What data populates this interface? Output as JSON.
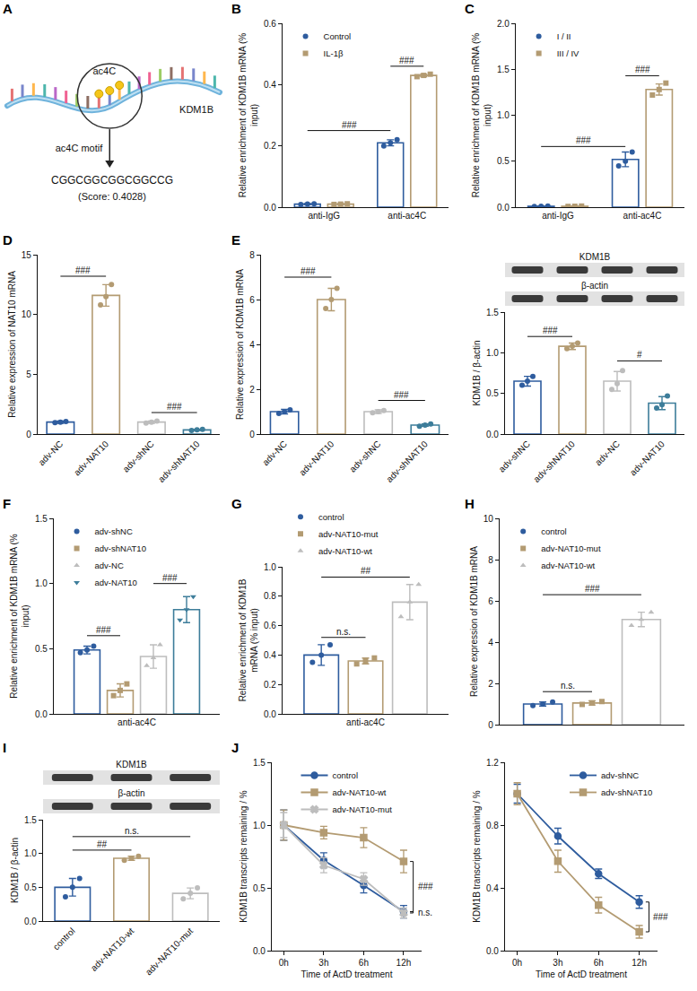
{
  "diagram": {
    "panel": "A",
    "modification": "ac4C",
    "gene": "KDM1B",
    "motif_label": "ac4C motif",
    "motif": "CGGCGGCGGCGGCCG",
    "score": "(Score: 0.4028)"
  },
  "chart_data": [
    {
      "panel": "B",
      "type": "bar",
      "categories": [
        "anti-IgG",
        "anti-ac4C"
      ],
      "y_label": "Relative enrichment of KDM1B mRNA (% input)",
      "ylim": [
        0,
        0.6
      ],
      "yticks": [
        {
          "value": 0,
          "label": "0.0"
        },
        0.2,
        0.4,
        0.6
      ],
      "legend": "upper left",
      "series": [
        {
          "name": "Control",
          "color": "#2e5c9e",
          "marker": "circle",
          "values": [
            0.01,
            0.21
          ],
          "errors": [
            0.002,
            0.01
          ],
          "points": [
            [
              0.009,
              0.01,
              0.011
            ],
            [
              0.2,
              0.21,
              0.22
            ]
          ]
        },
        {
          "name": "IL-1β",
          "color": "#b39b72",
          "marker": "square",
          "values": [
            0.01,
            0.43
          ],
          "errors": [
            0.002,
            0.004
          ],
          "points": [
            [
              0.009,
              0.01,
              0.011
            ],
            [
              0.426,
              0.43,
              0.434
            ]
          ]
        }
      ],
      "annotations": [
        {
          "text": "###",
          "from": [
            0,
            0
          ],
          "to": [
            1,
            0
          ],
          "y": 0.25
        },
        {
          "text": "###",
          "from": [
            1,
            0
          ],
          "to": [
            1,
            1
          ],
          "y": 0.46
        }
      ]
    },
    {
      "panel": "C",
      "type": "bar",
      "categories": [
        "anti-IgG",
        "anti-ac4C"
      ],
      "y_label": "Relative enrichment of KDM1B mRNA (% input)",
      "ylim": [
        0,
        2
      ],
      "yticks": [
        {
          "value": 0,
          "label": "0.0"
        },
        0.5,
        {
          "value": 1,
          "label": "1.0"
        },
        1.5,
        {
          "value": 2,
          "label": "2.0"
        }
      ],
      "legend": "upper left",
      "series": [
        {
          "name": "I / II",
          "color": "#2e5c9e",
          "marker": "circle",
          "values": [
            0.01,
            0.52
          ],
          "errors": [
            0.003,
            0.08
          ],
          "points": [
            [
              0.008,
              0.01,
              0.012
            ],
            [
              0.45,
              0.5,
              0.6
            ]
          ]
        },
        {
          "name": "III / IV",
          "color": "#b39b72",
          "marker": "square",
          "values": [
            0.01,
            1.28
          ],
          "errors": [
            0.003,
            0.06
          ],
          "points": [
            [
              0.008,
              0.01,
              0.012
            ],
            [
              1.22,
              1.28,
              1.35
            ]
          ]
        }
      ],
      "annotations": [
        {
          "text": "###",
          "from": [
            0,
            0
          ],
          "to": [
            1,
            0
          ],
          "y": 0.66
        },
        {
          "text": "###",
          "from": [
            1,
            0
          ],
          "to": [
            1,
            1
          ],
          "y": 1.43
        }
      ]
    },
    {
      "panel": "D",
      "type": "bar",
      "categories": [
        "adv-NC",
        "adv-NAT10",
        "adv-shNC",
        "adv-shNAT10"
      ],
      "y_label": "Relative expression of NAT10 mRNA",
      "ylim": [
        0,
        15
      ],
      "yticks": [
        0,
        5,
        10,
        15
      ],
      "marker": "circle",
      "colors": [
        "#2e5c9e",
        "#b39b72",
        "#bdbdbd",
        "#3d7d9a"
      ],
      "values": [
        1.0,
        11.6,
        1.0,
        0.35
      ],
      "errors": [
        0.1,
        0.9,
        0.1,
        0.05
      ],
      "points": [
        [
          0.95,
          1.0,
          1.05
        ],
        [
          10.8,
          11.5,
          12.5
        ],
        [
          0.92,
          1.0,
          1.08
        ],
        [
          0.3,
          0.35,
          0.4
        ]
      ],
      "annotations": [
        {
          "text": "###",
          "from": [
            0,
            0
          ],
          "to": [
            1,
            0
          ],
          "y": 13.2
        },
        {
          "text": "###",
          "from": [
            2,
            0
          ],
          "to": [
            3,
            0
          ],
          "y": 1.8
        }
      ]
    },
    {
      "panel": "E",
      "type": "bar",
      "categories": [
        "adv-NC",
        "adv-NAT10",
        "adv-shNC",
        "adv-shNAT10"
      ],
      "y_label": "Relative expression of KDM1B mRNA",
      "ylim": [
        0,
        8
      ],
      "yticks": [
        0,
        2,
        4,
        6,
        8
      ],
      "marker": "circle",
      "colors": [
        "#2e5c9e",
        "#b39b72",
        "#bdbdbd",
        "#3d7d9a"
      ],
      "values": [
        1.0,
        6.0,
        1.0,
        0.4
      ],
      "errors": [
        0.1,
        0.5,
        0.08,
        0.05
      ],
      "points": [
        [
          0.92,
          1.0,
          1.08
        ],
        [
          5.6,
          6.0,
          6.5
        ],
        [
          0.95,
          1.0,
          1.05
        ],
        [
          0.35,
          0.4,
          0.45
        ]
      ],
      "annotations": [
        {
          "text": "###",
          "from": [
            0,
            0
          ],
          "to": [
            1,
            0
          ],
          "y": 7.0
        },
        {
          "text": "###",
          "from": [
            2,
            0
          ],
          "to": [
            3,
            0
          ],
          "y": 1.5
        }
      ]
    },
    {
      "type": "bar",
      "categories": [
        "adv-shNC",
        "adv-shNAT10",
        "adv-NC",
        "adv-NAT10"
      ],
      "y_label": "KDM1B / β-actin",
      "blot": {
        "rows": [
          "KDM1B",
          "β-actin"
        ]
      },
      "ylim": [
        0,
        1.5
      ],
      "yticks": [
        {
          "value": 0,
          "label": "0.0"
        },
        0.5,
        {
          "value": 1,
          "label": "1.0"
        },
        1.5
      ],
      "marker": "circle",
      "colors": [
        "#2e5c9e",
        "#b39b72",
        "#bdbdbd",
        "#3d7d9a"
      ],
      "values": [
        0.65,
        1.08,
        0.65,
        0.38
      ],
      "errors": [
        0.06,
        0.04,
        0.12,
        0.08
      ],
      "points": [
        [
          0.6,
          0.65,
          0.71
        ],
        [
          1.05,
          1.08,
          1.12
        ],
        [
          0.55,
          0.62,
          0.78
        ],
        [
          0.32,
          0.36,
          0.47
        ]
      ],
      "annotations": [
        {
          "text": "###",
          "from": [
            0,
            0
          ],
          "to": [
            1,
            0
          ],
          "y": 1.2
        },
        {
          "text": "#",
          "from": [
            2,
            0
          ],
          "to": [
            3,
            0
          ],
          "y": 0.9
        }
      ]
    },
    {
      "panel": "F",
      "type": "bar",
      "categories": [
        "anti-ac4C"
      ],
      "y_label": "Relative enrichment of KDM1B mRNA (% input)",
      "ylim": [
        0,
        1.5
      ],
      "yticks": [
        {
          "value": 0,
          "label": "0.0"
        },
        0.5,
        {
          "value": 1,
          "label": "1.0"
        },
        1.5
      ],
      "legend": "upper left",
      "series": [
        {
          "name": "adv-shNC",
          "color": "#2e5c9e",
          "marker": "circle",
          "values": [
            0.49
          ],
          "errors": [
            0.03
          ],
          "points": [
            [
              0.47,
              0.49,
              0.52
            ]
          ]
        },
        {
          "name": "adv-shNAT10",
          "color": "#b39b72",
          "marker": "square",
          "values": [
            0.18
          ],
          "errors": [
            0.05
          ],
          "points": [
            [
              0.14,
              0.18,
              0.23
            ]
          ]
        },
        {
          "name": "adv-NC",
          "color": "#bdbdbd",
          "marker": "triangle-up",
          "values": [
            0.44
          ],
          "errors": [
            0.09
          ],
          "points": [
            [
              0.37,
              0.43,
              0.53
            ]
          ]
        },
        {
          "name": "adv-NAT10",
          "color": "#3d7d9a",
          "marker": "triangle-down",
          "values": [
            0.8
          ],
          "errors": [
            0.1
          ],
          "points": [
            [
              0.72,
              0.8,
              0.9
            ]
          ]
        }
      ],
      "annotations": [
        {
          "text": "###",
          "from": [
            0,
            0
          ],
          "to": [
            0,
            1
          ],
          "y": 0.6
        },
        {
          "text": "###",
          "from": [
            0,
            2
          ],
          "to": [
            0,
            3
          ],
          "y": 1.0
        }
      ]
    },
    {
      "panel": "G",
      "type": "bar",
      "categories": [
        "anti-ac4C"
      ],
      "y_label": "Relative enrichment of KDM1B mRNA (% input)",
      "ylim": [
        0,
        1
      ],
      "yticks": [
        {
          "value": 0,
          "label": "0.0"
        },
        0.2,
        0.4,
        0.6,
        0.8,
        {
          "value": 1,
          "label": "1.0"
        }
      ],
      "legend": "top",
      "series": [
        {
          "name": "control",
          "color": "#2e5c9e",
          "marker": "circle",
          "values": [
            0.4
          ],
          "errors": [
            0.07
          ],
          "points": [
            [
              0.35,
              0.4,
              0.47
            ]
          ]
        },
        {
          "name": "adv-NAT10-mut",
          "color": "#b39b72",
          "marker": "square",
          "values": [
            0.36
          ],
          "errors": [
            0.02
          ],
          "points": [
            [
              0.34,
              0.36,
              0.38
            ]
          ]
        },
        {
          "name": "adv-NAT10-wt",
          "color": "#bdbdbd",
          "marker": "triangle-up",
          "values": [
            0.76
          ],
          "errors": [
            0.12
          ],
          "points": [
            [
              0.66,
              0.76,
              0.88
            ]
          ]
        }
      ],
      "annotations": [
        {
          "text": "n.s.",
          "from": [
            0,
            0
          ],
          "to": [
            0,
            1
          ],
          "y": 0.52
        },
        {
          "text": "##",
          "from": [
            0,
            0
          ],
          "to": [
            0,
            2
          ],
          "y": 0.93
        }
      ]
    },
    {
      "panel": "H",
      "type": "bar",
      "categories": [
        null
      ],
      "tick_labels": "y",
      "y_label": "Relative expression of KDM1B mRNA",
      "ylim": [
        0,
        10
      ],
      "yticks": [
        0,
        2,
        4,
        6,
        8,
        10
      ],
      "legend": "upper left",
      "series": [
        {
          "name": "control",
          "color": "#2e5c9e",
          "marker": "circle",
          "values": [
            1.0
          ],
          "errors": [
            0.1
          ],
          "points": [
            [
              0.92,
              1.0,
              1.1
            ]
          ]
        },
        {
          "name": "adv-NAT10-mut",
          "color": "#b39b72",
          "marker": "square",
          "values": [
            1.05
          ],
          "errors": [
            0.1
          ],
          "points": [
            [
              0.98,
              1.05,
              1.12
            ]
          ]
        },
        {
          "name": "adv-NAT10-wt",
          "color": "#bdbdbd",
          "marker": "triangle-up",
          "values": [
            5.1
          ],
          "errors": [
            0.35
          ],
          "points": [
            [
              4.8,
              5.1,
              5.45
            ]
          ]
        }
      ],
      "annotations": [
        {
          "text": "n.s.",
          "from": [
            0,
            0
          ],
          "to": [
            0,
            1
          ],
          "y": 1.6
        },
        {
          "text": "###",
          "from": [
            0,
            0
          ],
          "to": [
            0,
            2
          ],
          "y": 6.3
        }
      ]
    },
    {
      "panel": "I",
      "type": "bar",
      "categories": [
        "control",
        "adv-NAT10-wt",
        "adv-NAT10-mut"
      ],
      "y_label": "KDM1B / β-actin",
      "blot": {
        "rows": [
          "KDM1B",
          "β-actin"
        ]
      },
      "ylim": [
        0,
        1.5
      ],
      "yticks": [
        {
          "value": 0,
          "label": "0.0"
        },
        0.5,
        {
          "value": 1,
          "label": "1.0"
        },
        1.5
      ],
      "marker": "circle",
      "colors": [
        "#2e5c9e",
        "#b39b72",
        "#bdbdbd"
      ],
      "values": [
        0.5,
        0.93,
        0.41
      ],
      "errors": [
        0.13,
        0.03,
        0.08
      ],
      "points": [
        [
          0.36,
          0.5,
          0.63
        ],
        [
          0.9,
          0.93,
          0.96
        ],
        [
          0.33,
          0.41,
          0.49
        ]
      ],
      "annotations": [
        {
          "text": "##",
          "from": [
            0,
            0
          ],
          "to": [
            1,
            0
          ],
          "y": 1.05
        },
        {
          "text": "n.s.",
          "from": [
            0,
            0
          ],
          "to": [
            2,
            0
          ],
          "y": 1.25
        }
      ]
    },
    {
      "panel": "J",
      "type": "line",
      "categories": [
        "0h",
        "3h",
        "6h",
        "12h"
      ],
      "x_label": "Time of ActD treatment",
      "y_label": "KDM1B transcripts remaining / %",
      "ylim": [
        0,
        1.5
      ],
      "yticks": [
        {
          "value": 0,
          "label": "0.0"
        },
        0.5,
        {
          "value": 1,
          "label": "1.0"
        },
        1.5
      ],
      "legend": "upper center",
      "series": [
        {
          "name": "control",
          "color": "#2e5c9e",
          "marker": "circle",
          "values": [
            1.0,
            0.72,
            0.52,
            0.31
          ],
          "errors": [
            0.12,
            0.06,
            0.06,
            0.05
          ]
        },
        {
          "name": "adv-NAT10-wt",
          "color": "#b39b72",
          "marker": "square",
          "values": [
            1.0,
            0.94,
            0.9,
            0.71
          ],
          "errors": [
            0.12,
            0.05,
            0.08,
            0.09
          ]
        },
        {
          "name": "adv-NAT10-mut",
          "color": "#bdbdbd",
          "marker": "x",
          "values": [
            1.0,
            0.68,
            0.57,
            0.3
          ],
          "errors": [
            0.1,
            0.06,
            0.05,
            0.04
          ]
        }
      ],
      "annotations": [
        {
          "text": "###",
          "x": 3,
          "y0": 0.71,
          "y1": 0.31
        },
        {
          "text": "n.s.",
          "x": 3,
          "y0": 0.31,
          "y1": 0.3
        }
      ]
    },
    {
      "type": "line",
      "categories": [
        "0h",
        "3h",
        "6h",
        "12h"
      ],
      "x_label": "Time of ActD treatment",
      "y_label": "KDM1B transcripts remaining / %",
      "ylim": [
        0,
        1.2
      ],
      "yticks": [
        {
          "value": 0,
          "label": "0.0"
        },
        0.4,
        0.8,
        1.2
      ],
      "legend": "upper right",
      "series": [
        {
          "name": "adv-shNC",
          "color": "#2e5c9e",
          "marker": "circle",
          "values": [
            1.0,
            0.73,
            0.49,
            0.31
          ],
          "errors": [
            0.06,
            0.05,
            0.03,
            0.04
          ]
        },
        {
          "name": "adv-shNAT10",
          "color": "#b39b72",
          "marker": "square",
          "values": [
            1.0,
            0.57,
            0.29,
            0.12
          ],
          "errors": [
            0.07,
            0.07,
            0.05,
            0.04
          ]
        }
      ],
      "annotations": [
        {
          "text": "###",
          "x": 3,
          "y0": 0.31,
          "y1": 0.12
        }
      ]
    }
  ]
}
